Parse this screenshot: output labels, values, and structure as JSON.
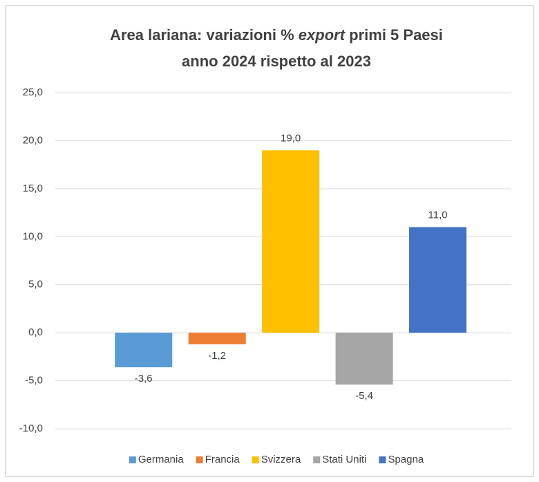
{
  "chart_data": {
    "type": "bar",
    "title": {
      "line1": [
        "Area lariana: variazioni %",
        "export",
        "primi 5 Paesi"
      ],
      "line2": "anno 2024 rispetto al 2023"
    },
    "series": [
      {
        "name": "Germania",
        "color": "#5b9bd5",
        "values": [
          -3.6
        ],
        "value_labels": [
          "-3,6"
        ]
      },
      {
        "name": "Francia",
        "color": "#ed7d31",
        "values": [
          -1.2
        ],
        "value_labels": [
          "-1,2"
        ]
      },
      {
        "name": "Svizzera",
        "color": "#ffc000",
        "values": [
          19.0
        ],
        "value_labels": [
          "19,0"
        ]
      },
      {
        "name": "Stati Uniti",
        "color": "#a5a5a5",
        "values": [
          -5.4
        ],
        "value_labels": [
          "-5,4"
        ]
      },
      {
        "name": "Spagna",
        "color": "#4472c4",
        "values": [
          11.0
        ],
        "value_labels": [
          "11,0"
        ]
      }
    ],
    "ylim": [
      -10,
      25
    ],
    "yticks": [
      {
        "value": -10,
        "label": "-10,0"
      },
      {
        "value": -5,
        "label": "-5,0"
      },
      {
        "value": 0,
        "label": "0,0"
      },
      {
        "value": 5,
        "label": "5,0"
      },
      {
        "value": 10,
        "label": "10,0"
      },
      {
        "value": 15,
        "label": "15,0"
      },
      {
        "value": 20,
        "label": "20,0"
      },
      {
        "value": 25,
        "label": "25,0"
      }
    ],
    "grid": true,
    "legend": "bottom"
  }
}
